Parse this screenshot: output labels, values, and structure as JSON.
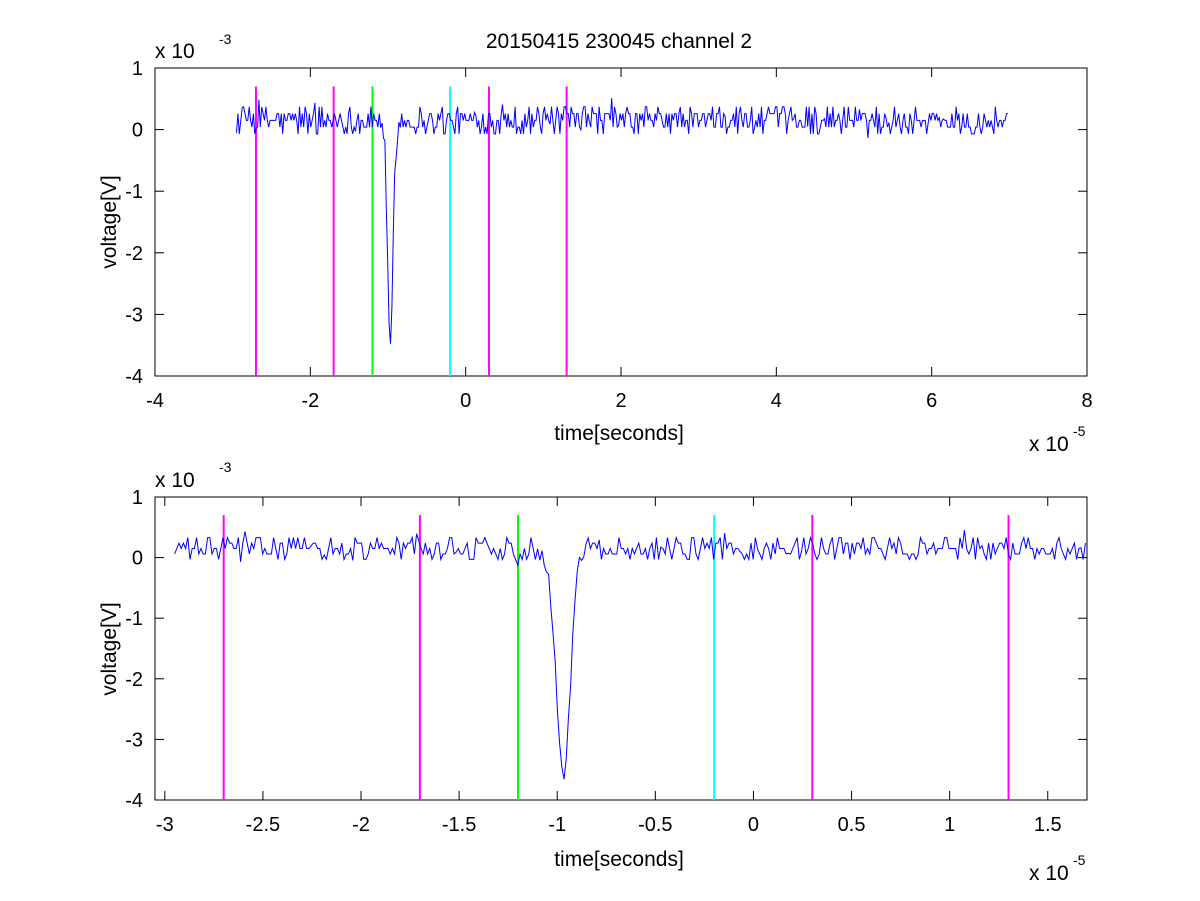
{
  "figure": {
    "title": "20150415 230045 channel 2",
    "background": "#ffffff"
  },
  "chart_data": [
    {
      "type": "line",
      "xlabel": "time[seconds]",
      "ylabel": "voltage[V]",
      "x_exponent_base": "x 10",
      "x_exponent_power": "-5",
      "y_exponent_base": "x 10",
      "y_exponent_power": "-3",
      "xlim": [
        -4,
        8
      ],
      "ylim": [
        -4,
        1
      ],
      "xticks": [
        -4,
        -2,
        0,
        2,
        4,
        6,
        8
      ],
      "xtick_labels": [
        "-4",
        "-2",
        "0",
        "2",
        "4",
        "6",
        "8"
      ],
      "yticks": [
        -4,
        -3,
        -2,
        -1,
        0,
        1
      ],
      "ytick_labels": [
        "-4",
        "-3",
        "-2",
        "-1",
        "0",
        "1"
      ],
      "grid": false,
      "signal": {
        "color": "#0000ff",
        "x_start": -2.95,
        "x_end": 7.0,
        "baseline": 0.15,
        "noise_amplitude": 0.22,
        "spike_time": -0.97,
        "spike_min": -3.6,
        "spike_width": 0.05
      },
      "markers": [
        {
          "x": -2.7,
          "color": "#ff00ff"
        },
        {
          "x": -1.7,
          "color": "#ff00ff"
        },
        {
          "x": -1.2,
          "color": "#00ff00"
        },
        {
          "x": -0.2,
          "color": "#00ffff"
        },
        {
          "x": 0.3,
          "color": "#ff00ff"
        },
        {
          "x": 1.3,
          "color": "#ff00ff"
        }
      ],
      "marker_top": 0.7
    },
    {
      "type": "line",
      "xlabel": "time[seconds]",
      "ylabel": "voltage[V]",
      "x_exponent_base": "x 10",
      "x_exponent_power": "-5",
      "y_exponent_base": "x 10",
      "y_exponent_power": "-3",
      "xlim": [
        -3.05,
        1.7
      ],
      "ylim": [
        -4,
        1
      ],
      "xticks": [
        -3,
        -2.5,
        -2,
        -1.5,
        -1,
        -0.5,
        0,
        0.5,
        1,
        1.5
      ],
      "xtick_labels": [
        "-3",
        "-2.5",
        "-2",
        "-1.5",
        "-1",
        "-0.5",
        "0",
        "0.5",
        "1",
        "1.5"
      ],
      "yticks": [
        -4,
        -3,
        -2,
        -1,
        0,
        1
      ],
      "ytick_labels": [
        "-4",
        "-3",
        "-2",
        "-1",
        "0",
        "1"
      ],
      "grid": false,
      "signal": {
        "color": "#0000ff",
        "x_start": -2.95,
        "x_end": 1.7,
        "baseline": 0.15,
        "noise_amplitude": 0.18,
        "spike_time": -0.97,
        "spike_min": -3.6,
        "spike_width": 0.05
      },
      "markers": [
        {
          "x": -2.7,
          "color": "#ff00ff"
        },
        {
          "x": -1.7,
          "color": "#ff00ff"
        },
        {
          "x": -1.2,
          "color": "#00ff00"
        },
        {
          "x": -0.2,
          "color": "#00ffff"
        },
        {
          "x": 0.3,
          "color": "#ff00ff"
        },
        {
          "x": 1.3,
          "color": "#ff00ff"
        }
      ],
      "marker_top": 0.7
    }
  ]
}
